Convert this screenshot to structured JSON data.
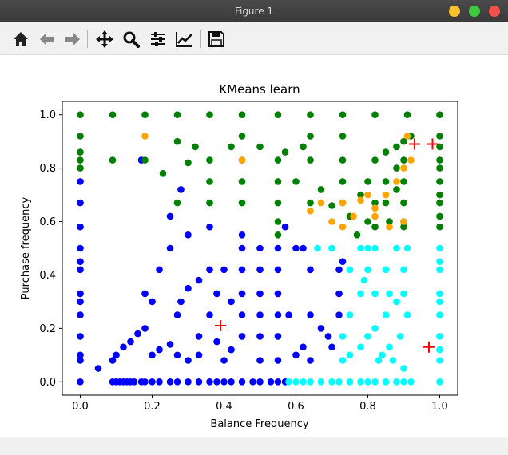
{
  "window": {
    "title": "Figure 1"
  },
  "toolbar": {
    "buttons": [
      {
        "name": "home",
        "icon": "home-icon"
      },
      {
        "name": "back",
        "icon": "arrow-left-icon"
      },
      {
        "name": "forward",
        "icon": "arrow-right-icon"
      },
      {
        "name": "pan",
        "icon": "move-icon"
      },
      {
        "name": "zoom",
        "icon": "magnifier-icon"
      },
      {
        "name": "subplots",
        "icon": "sliders-icon"
      },
      {
        "name": "edit-axes",
        "icon": "line-chart-icon"
      },
      {
        "name": "save",
        "icon": "floppy-icon"
      }
    ]
  },
  "colors": {
    "cluster_blue": "#0000ff",
    "cluster_cyan": "#00ffff",
    "cluster_green": "#008000",
    "cluster_orange": "#ffa500",
    "centroid": "#ff0000",
    "close_button": "#f5504c",
    "min_button": "#f9c22e",
    "max_button": "#3fc93f"
  },
  "chart_data": {
    "type": "scatter",
    "title": "KMeans learn",
    "xlabel": "Balance Frequency",
    "ylabel": "Purchase frequency",
    "xlim": [
      -0.05,
      1.05
    ],
    "ylim": [
      -0.05,
      1.05
    ],
    "xticks": [
      "0.0",
      "0.2",
      "0.4",
      "0.6",
      "0.8",
      "1.0"
    ],
    "yticks": [
      "0.0",
      "0.2",
      "0.4",
      "0.6",
      "0.8",
      "1.0"
    ],
    "grid": false,
    "legend": false,
    "series": [
      {
        "color": "#0000ff",
        "points": [
          [
            0,
            0
          ],
          [
            0,
            0.08
          ],
          [
            0,
            0.17
          ],
          [
            0,
            0.25
          ],
          [
            0,
            0.33
          ],
          [
            0,
            0.42
          ],
          [
            0,
            0.5
          ],
          [
            0,
            0.58
          ],
          [
            0,
            0.67
          ],
          [
            0,
            0.75
          ],
          [
            0,
            0.1
          ],
          [
            0,
            0.3
          ],
          [
            0,
            0.45
          ],
          [
            0.09,
            0
          ],
          [
            0.1,
            0
          ],
          [
            0.11,
            0
          ],
          [
            0.12,
            0
          ],
          [
            0.13,
            0
          ],
          [
            0.14,
            0
          ],
          [
            0.15,
            0
          ],
          [
            0.17,
            0
          ],
          [
            0.18,
            0
          ],
          [
            0.2,
            0
          ],
          [
            0.22,
            0
          ],
          [
            0.25,
            0
          ],
          [
            0.27,
            0
          ],
          [
            0.3,
            0
          ],
          [
            0.33,
            0
          ],
          [
            0.36,
            0
          ],
          [
            0.38,
            0
          ],
          [
            0.4,
            0
          ],
          [
            0.42,
            0
          ],
          [
            0.45,
            0
          ],
          [
            0.48,
            0
          ],
          [
            0.5,
            0
          ],
          [
            0.53,
            0
          ],
          [
            0.55,
            0
          ],
          [
            0.57,
            0
          ],
          [
            0.09,
            0.08
          ],
          [
            0.1,
            0.1
          ],
          [
            0.12,
            0.13
          ],
          [
            0.14,
            0.15
          ],
          [
            0.16,
            0.18
          ],
          [
            0.18,
            0.2
          ],
          [
            0.2,
            0.1
          ],
          [
            0.22,
            0.12
          ],
          [
            0.25,
            0.14
          ],
          [
            0.27,
            0.1
          ],
          [
            0.3,
            0.08
          ],
          [
            0.33,
            0.17
          ],
          [
            0.36,
            0.25
          ],
          [
            0.38,
            0.33
          ],
          [
            0.4,
            0.42
          ],
          [
            0.27,
            0.25
          ],
          [
            0.18,
            0.33
          ],
          [
            0.2,
            0.3
          ],
          [
            0.22,
            0.42
          ],
          [
            0.25,
            0.5
          ],
          [
            0.28,
            0.3
          ],
          [
            0.3,
            0.35
          ],
          [
            0.33,
            0.38
          ],
          [
            0.36,
            0.42
          ],
          [
            0.4,
            0.08
          ],
          [
            0.42,
            0.12
          ],
          [
            0.45,
            0.17
          ],
          [
            0.45,
            0.25
          ],
          [
            0.45,
            0.33
          ],
          [
            0.45,
            0.42
          ],
          [
            0.45,
            0.5
          ],
          [
            0.45,
            0.55
          ],
          [
            0.5,
            0.5
          ],
          [
            0.5,
            0.42
          ],
          [
            0.5,
            0.33
          ],
          [
            0.5,
            0.25
          ],
          [
            0.5,
            0.17
          ],
          [
            0.5,
            0.08
          ],
          [
            0.55,
            0.5
          ],
          [
            0.55,
            0.42
          ],
          [
            0.55,
            0.33
          ],
          [
            0.55,
            0.25
          ],
          [
            0.55,
            0.17
          ],
          [
            0.55,
            0.08
          ],
          [
            0.57,
            0.58
          ],
          [
            0.58,
            0.25
          ],
          [
            0.6,
            0.5
          ],
          [
            0.62,
            0.5
          ],
          [
            0.64,
            0.25
          ],
          [
            0.64,
            0.42
          ],
          [
            0.67,
            0.2
          ],
          [
            0.69,
            0.17
          ],
          [
            0.7,
            0.13
          ],
          [
            0.72,
            0.25
          ],
          [
            0.72,
            0.33
          ],
          [
            0.72,
            0.42
          ],
          [
            0.73,
            0.45
          ],
          [
            0.6,
            0.1
          ],
          [
            0.62,
            0.13
          ],
          [
            0.64,
            0.08
          ],
          [
            0.36,
            0.58
          ],
          [
            0.25,
            0.62
          ],
          [
            0.28,
            0.72
          ],
          [
            0.3,
            0.55
          ],
          [
            0.17,
            0.83
          ],
          [
            0.38,
            0.15
          ],
          [
            0.42,
            0.3
          ],
          [
            0.33,
            0.1
          ],
          [
            0.05,
            0.05
          ]
        ]
      },
      {
        "color": "#00ffff",
        "points": [
          [
            0.58,
            0
          ],
          [
            0.6,
            0
          ],
          [
            0.62,
            0
          ],
          [
            0.64,
            0
          ],
          [
            0.67,
            0
          ],
          [
            0.7,
            0
          ],
          [
            0.72,
            0
          ],
          [
            0.75,
            0
          ],
          [
            0.78,
            0
          ],
          [
            0.8,
            0
          ],
          [
            0.82,
            0
          ],
          [
            0.85,
            0
          ],
          [
            0.88,
            0
          ],
          [
            0.9,
            0
          ],
          [
            0.92,
            0
          ],
          [
            1,
            0
          ],
          [
            1,
            0.08
          ],
          [
            1,
            0.17
          ],
          [
            1,
            0.25
          ],
          [
            1,
            0.33
          ],
          [
            1,
            0.42
          ],
          [
            1,
            0.5
          ],
          [
            1,
            0.12
          ],
          [
            1,
            0.3
          ],
          [
            1,
            0.45
          ],
          [
            0.73,
            0.08
          ],
          [
            0.75,
            0.1
          ],
          [
            0.78,
            0.13
          ],
          [
            0.8,
            0.17
          ],
          [
            0.82,
            0.2
          ],
          [
            0.85,
            0.25
          ],
          [
            0.88,
            0.3
          ],
          [
            0.9,
            0.33
          ],
          [
            0.73,
            0.17
          ],
          [
            0.75,
            0.25
          ],
          [
            0.78,
            0.33
          ],
          [
            0.8,
            0.42
          ],
          [
            0.82,
            0.5
          ],
          [
            0.85,
            0.42
          ],
          [
            0.88,
            0.5
          ],
          [
            0.9,
            0.42
          ],
          [
            0.78,
            0.5
          ],
          [
            0.8,
            0.5
          ],
          [
            0.83,
            0.08
          ],
          [
            0.86,
            0.13
          ],
          [
            0.89,
            0.17
          ],
          [
            0.91,
            0.25
          ],
          [
            0.75,
            0.42
          ],
          [
            0.82,
            0.33
          ],
          [
            0.84,
            0.1
          ],
          [
            0.87,
            0.08
          ],
          [
            0.9,
            0.05
          ],
          [
            0.66,
            0.5
          ],
          [
            0.7,
            0.5
          ],
          [
            0.79,
            0.38
          ],
          [
            0.86,
            0.33
          ],
          [
            0.91,
            0.5
          ]
        ]
      },
      {
        "color": "#008000",
        "points": [
          [
            0,
            1
          ],
          [
            0,
            0.92
          ],
          [
            0,
            0.83
          ],
          [
            0,
            0.86
          ],
          [
            0,
            0.8
          ],
          [
            0.09,
            1
          ],
          [
            0.09,
            0.83
          ],
          [
            0.18,
            1
          ],
          [
            0.18,
            0.83
          ],
          [
            0.27,
            1
          ],
          [
            0.36,
            1
          ],
          [
            0.45,
            1
          ],
          [
            0.55,
            1
          ],
          [
            0.64,
            1
          ],
          [
            0.73,
            1
          ],
          [
            0.82,
            1
          ],
          [
            0.91,
            1
          ],
          [
            1,
            1
          ],
          [
            0.27,
            0.9
          ],
          [
            0.36,
            0.67
          ],
          [
            0.36,
            0.75
          ],
          [
            0.36,
            0.83
          ],
          [
            0.45,
            0.83
          ],
          [
            0.45,
            0.92
          ],
          [
            0.27,
            0.67
          ],
          [
            0.45,
            0.67
          ],
          [
            0.45,
            0.75
          ],
          [
            0.55,
            0.67
          ],
          [
            0.55,
            0.75
          ],
          [
            0.55,
            0.83
          ],
          [
            0.55,
            0.6
          ],
          [
            0.55,
            0.55
          ],
          [
            0.64,
            0.67
          ],
          [
            0.64,
            0.83
          ],
          [
            0.64,
            0.92
          ],
          [
            0.73,
            0.67
          ],
          [
            0.73,
            0.75
          ],
          [
            0.73,
            0.83
          ],
          [
            0.73,
            0.92
          ],
          [
            0.8,
            0.75
          ],
          [
            0.82,
            0.83
          ],
          [
            0.85,
            0.86
          ],
          [
            0.88,
            0.88
          ],
          [
            0.9,
            0.9
          ],
          [
            0.92,
            0.92
          ],
          [
            0.82,
            0.67
          ],
          [
            0.85,
            0.75
          ],
          [
            0.88,
            0.8
          ],
          [
            0.9,
            0.83
          ],
          [
            0.82,
            0.58
          ],
          [
            0.85,
            0.67
          ],
          [
            0.88,
            0.72
          ],
          [
            0.9,
            0.75
          ],
          [
            0.8,
            0.6
          ],
          [
            0.78,
            0.7
          ],
          [
            0.75,
            0.62
          ],
          [
            0.9,
            0.58
          ],
          [
            0.9,
            0.67
          ],
          [
            0.9,
            0.6
          ],
          [
            1,
            0.92
          ],
          [
            1,
            0.83
          ],
          [
            1,
            0.75
          ],
          [
            1,
            0.67
          ],
          [
            1,
            0.58
          ],
          [
            1,
            0.62
          ],
          [
            1,
            0.7
          ],
          [
            1,
            0.8
          ],
          [
            1,
            0.88
          ],
          [
            0.23,
            0.78
          ],
          [
            0.3,
            0.82
          ],
          [
            0.42,
            0.88
          ],
          [
            0.5,
            0.88
          ],
          [
            0.57,
            0.86
          ],
          [
            0.62,
            0.88
          ],
          [
            0.67,
            0.72
          ],
          [
            0.7,
            0.66
          ],
          [
            0.32,
            0.88
          ],
          [
            0.6,
            0.75
          ],
          [
            0.77,
            0.55
          ],
          [
            0.86,
            0.6
          ]
        ]
      },
      {
        "color": "#ffa500",
        "points": [
          [
            0.18,
            0.92
          ],
          [
            0.45,
            0.83
          ],
          [
            0.64,
            0.64
          ],
          [
            0.67,
            0.67
          ],
          [
            0.7,
            0.6
          ],
          [
            0.73,
            0.67
          ],
          [
            0.73,
            0.58
          ],
          [
            0.76,
            0.62
          ],
          [
            0.78,
            0.68
          ],
          [
            0.8,
            0.7
          ],
          [
            0.82,
            0.65
          ],
          [
            0.85,
            0.7
          ],
          [
            0.88,
            0.75
          ],
          [
            0.9,
            0.8
          ],
          [
            0.91,
            0.92
          ],
          [
            0.9,
            0.6
          ],
          [
            0.86,
            0.58
          ],
          [
            0.82,
            0.62
          ],
          [
            0.92,
            0.83
          ]
        ]
      }
    ],
    "centroids": [
      [
        0.39,
        0.21
      ],
      [
        0.93,
        0.89
      ],
      [
        0.98,
        0.89
      ],
      [
        0.97,
        0.13
      ]
    ]
  }
}
